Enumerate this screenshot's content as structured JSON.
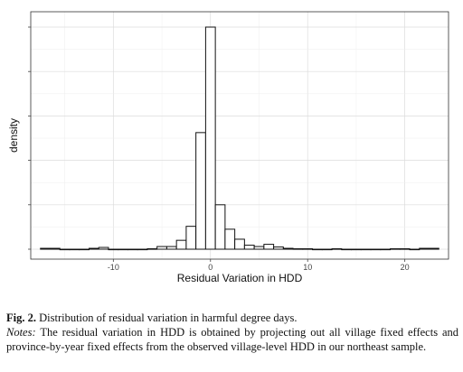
{
  "chart_data": {
    "type": "histogram",
    "xlabel": "Residual Variation in HDD",
    "ylabel": "density",
    "xlim": [
      -18.5,
      24.5
    ],
    "ylim": [
      0,
      1.0
    ],
    "x_ticks": [
      -10,
      0,
      10,
      20
    ],
    "x_tick_labels": [
      "-10",
      "0",
      "10",
      "20"
    ],
    "y_tick_labels_shown": false,
    "grid": true,
    "legend": "none",
    "bin_width": 1,
    "bins": [
      {
        "x0": -17.5,
        "x1": -16.5,
        "y": 0.004
      },
      {
        "x0": -16.5,
        "x1": -15.5,
        "y": 0.004
      },
      {
        "x0": -15.5,
        "x1": -14.5,
        "y": 0.0
      },
      {
        "x0": -14.5,
        "x1": -13.5,
        "y": 0.0
      },
      {
        "x0": -13.5,
        "x1": -12.5,
        "y": 0.0
      },
      {
        "x0": -12.5,
        "x1": -11.5,
        "y": 0.004
      },
      {
        "x0": -11.5,
        "x1": -10.5,
        "y": 0.008
      },
      {
        "x0": -10.5,
        "x1": -9.5,
        "y": 0.0
      },
      {
        "x0": -9.5,
        "x1": -8.5,
        "y": 0.0
      },
      {
        "x0": -8.5,
        "x1": -7.5,
        "y": 0.0
      },
      {
        "x0": -7.5,
        "x1": -6.5,
        "y": 0.0
      },
      {
        "x0": -6.5,
        "x1": -5.5,
        "y": 0.002
      },
      {
        "x0": -5.5,
        "x1": -4.5,
        "y": 0.012
      },
      {
        "x0": -4.5,
        "x1": -3.5,
        "y": 0.012
      },
      {
        "x0": -3.5,
        "x1": -2.5,
        "y": 0.04
      },
      {
        "x0": -2.5,
        "x1": -1.5,
        "y": 0.103
      },
      {
        "x0": -1.5,
        "x1": -0.5,
        "y": 0.525
      },
      {
        "x0": -0.5,
        "x1": 0.5,
        "y": 1.0
      },
      {
        "x0": 0.5,
        "x1": 1.5,
        "y": 0.2
      },
      {
        "x0": 1.5,
        "x1": 2.5,
        "y": 0.09
      },
      {
        "x0": 2.5,
        "x1": 3.5,
        "y": 0.045
      },
      {
        "x0": 3.5,
        "x1": 4.5,
        "y": 0.018
      },
      {
        "x0": 4.5,
        "x1": 5.5,
        "y": 0.012
      },
      {
        "x0": 5.5,
        "x1": 6.5,
        "y": 0.022
      },
      {
        "x0": 6.5,
        "x1": 7.5,
        "y": 0.01
      },
      {
        "x0": 7.5,
        "x1": 8.5,
        "y": 0.004
      },
      {
        "x0": 8.5,
        "x1": 9.5,
        "y": 0.002
      },
      {
        "x0": 9.5,
        "x1": 10.5,
        "y": 0.002
      },
      {
        "x0": 10.5,
        "x1": 11.5,
        "y": 0.0
      },
      {
        "x0": 11.5,
        "x1": 12.5,
        "y": 0.0
      },
      {
        "x0": 12.5,
        "x1": 13.5,
        "y": 0.002
      },
      {
        "x0": 13.5,
        "x1": 14.5,
        "y": 0.0
      },
      {
        "x0": 14.5,
        "x1": 15.5,
        "y": 0.0
      },
      {
        "x0": 15.5,
        "x1": 16.5,
        "y": 0.0
      },
      {
        "x0": 16.5,
        "x1": 17.5,
        "y": 0.0
      },
      {
        "x0": 17.5,
        "x1": 18.5,
        "y": 0.0
      },
      {
        "x0": 18.5,
        "x1": 19.5,
        "y": 0.002
      },
      {
        "x0": 19.5,
        "x1": 20.5,
        "y": 0.002
      },
      {
        "x0": 20.5,
        "x1": 21.5,
        "y": 0.0
      },
      {
        "x0": 21.5,
        "x1": 22.5,
        "y": 0.004
      },
      {
        "x0": 22.5,
        "x1": 23.5,
        "y": 0.004
      }
    ]
  },
  "caption": {
    "fig_label": "Fig. 2.",
    "title": "Distribution of residual variation in harmful degree days.",
    "notes_label": "Notes:",
    "notes_text": "The residual variation in HDD is obtained by projecting out all village fixed effects and province-by-year fixed effects from the observed village-level HDD in our northeast sample."
  }
}
